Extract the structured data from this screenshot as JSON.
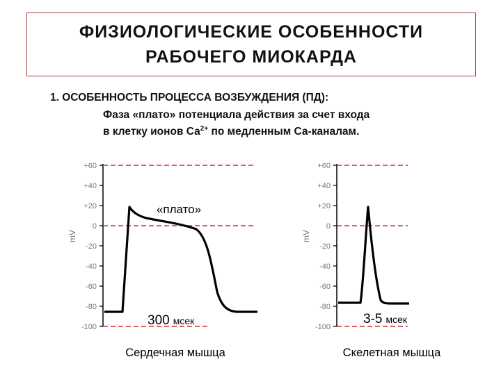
{
  "title": {
    "line1": "ФИЗИОЛОГИЧЕСКИЕ ОСОБЕННОСТИ",
    "line2": "РАБОЧЕГО МИОКАРДА"
  },
  "section": {
    "heading": "1. ОСОБЕННОСТЬ ПРОЦЕССА ВОЗБУЖДЕНИЯ  (ПД):",
    "desc_line1": "Фаза «плато» потенциала действия за счет входа",
    "desc_line2_pre": "в клетку ионов Са",
    "desc_line2_sup": "2+",
    "desc_line2_post": " по медленным Са-каналам."
  },
  "graphs": {
    "unit": "mV",
    "y_ticks": [
      "+60",
      "+40",
      "+20",
      "0",
      "-20",
      "-40",
      "-60",
      "-80",
      "-100"
    ],
    "cardiac": {
      "plateau_label": "«плато»",
      "duration_value": "300",
      "duration_unit": "мсек",
      "caption": "Сердечная мышца"
    },
    "skeletal": {
      "duration_value": "3-5",
      "duration_unit": "мсек",
      "caption": "Скелетная мышца"
    },
    "colors": {
      "dashed_line": "#d03030",
      "axis": "#000000",
      "tick_label": "#777777"
    }
  }
}
